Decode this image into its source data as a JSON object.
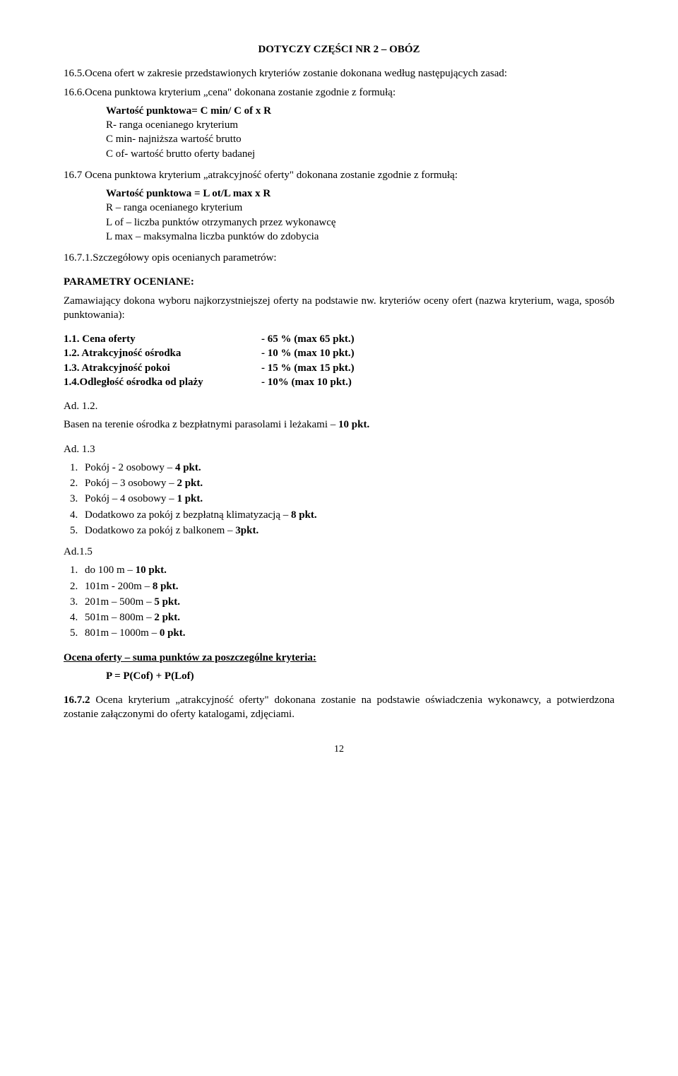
{
  "heading": "DOTYCZY CZĘŚCI NR 2 – OBÓZ",
  "p16_5": "16.5.Ocena ofert w zakresie przedstawionych kryteriów zostanie dokonana według następujących zasad:",
  "p16_6": "16.6.Ocena punktowa kryterium „cena\" dokonana zostanie zgodnie z formułą:",
  "formula1_bold": "Wartość punktowa= C min/ C of x R",
  "formula1_l1": "R- ranga ocenianego kryterium",
  "formula1_l2": "C min- najniższa wartość brutto",
  "formula1_l3": "C of- wartość brutto oferty badanej",
  "p16_7": "16.7 Ocena punktowa kryterium „atrakcyjność oferty\" dokonana zostanie zgodnie z formułą:",
  "formula2_bold": "Wartość punktowa = L ot/L max x R",
  "formula2_l1": "R – ranga ocenianego kryterium",
  "formula2_l2": "L of – liczba punktów otrzymanych przez wykonawcę",
  "formula2_l3": "L max – maksymalna liczba punktów do zdobycia",
  "p16_7_1": "16.7.1.Szczegółowy opis ocenianych parametrów:",
  "params_heading": "PARAMETRY OCENIANE:",
  "params_intro": "Zamawiający dokona wyboru najkorzystniejszej oferty na podstawie nw. kryteriów oceny ofert (nazwa kryterium, waga, sposób punktowania):",
  "criteria": [
    {
      "label": "1.1. Cena oferty",
      "value": "- 65 %  (max  65 pkt.)"
    },
    {
      "label": "1.2. Atrakcyjność ośrodka",
      "value": "- 10 %  (max 10 pkt.)"
    },
    {
      "label": "1.3. Atrakcyjność pokoi",
      "value": "- 15 %  (max 15 pkt.)"
    },
    {
      "label": "1.4.Odległość ośrodka od plaży",
      "value": "- 10%  (max 10 pkt.)"
    }
  ],
  "ad12_label": "Ad. 1.2.",
  "ad12_line_pre": "Basen na terenie ośrodka z bezpłatnymi parasolami i leżakami – ",
  "ad12_line_bold": "10 pkt.",
  "ad13_label": "Ad. 1.3",
  "ad13_items": [
    {
      "pre": "Pokój - 2 osobowy – ",
      "bold": "4 pkt."
    },
    {
      "pre": "Pokój – 3 osobowy – ",
      "bold": "2 pkt."
    },
    {
      "pre": "Pokój – 4 osobowy – ",
      "bold": "1 pkt."
    },
    {
      "pre": "Dodatkowo za pokój z bezpłatną klimatyzacją –  ",
      "bold": "8 pkt."
    },
    {
      "pre": "Dodatkowo za pokój z balkonem – ",
      "bold": "3pkt."
    }
  ],
  "ad15_label": "Ad.1.5",
  "ad15_items": [
    {
      "pre": "do 100 m –    ",
      "bold": "10 pkt."
    },
    {
      "pre": "101m -  200m –  ",
      "bold": "8 pkt."
    },
    {
      "pre": "201m – 500m –  ",
      "bold": "5 pkt."
    },
    {
      "pre": "501m – 800m –  ",
      "bold": "2 pkt."
    },
    {
      "pre": "801m – 1000m – ",
      "bold": "0 pkt."
    }
  ],
  "ocena_heading": "Ocena oferty – suma punktów za poszczególne kryteria:",
  "formula_p": "P = P(Cof) + P(Lof)",
  "p16_7_2_pre": "16.7.2 ",
  "p16_7_2_rest": "Ocena kryterium „atrakcyjność oferty\" dokonana zostanie na podstawie oświadczenia wykonawcy, a potwierdzona zostanie załączonymi do oferty katalogami, zdjęciami.",
  "page_number": "12"
}
